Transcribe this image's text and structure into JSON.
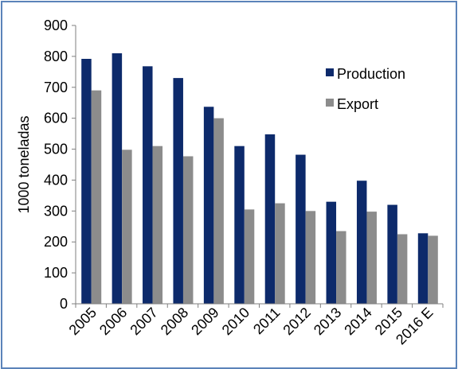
{
  "chart_data": {
    "type": "bar",
    "ylabel": "1000 toneladas",
    "xlabel": "",
    "ylim": [
      0,
      900
    ],
    "yticks": [
      0,
      100,
      200,
      300,
      400,
      500,
      600,
      700,
      800,
      900
    ],
    "grid": false,
    "legend_position": "top-right",
    "categories": [
      "2005",
      "2006",
      "2007",
      "2008",
      "2009",
      "2010",
      "2011",
      "2012",
      "2013",
      "2014",
      "2015",
      "2016 E"
    ],
    "series": [
      {
        "name": "Production",
        "color": "#0d2a6b",
        "values": [
          792,
          810,
          768,
          730,
          637,
          510,
          548,
          482,
          330,
          398,
          320,
          228
        ]
      },
      {
        "name": "Export",
        "color": "#8c8c8c",
        "values": [
          690,
          498,
          510,
          477,
          600,
          305,
          325,
          300,
          235,
          298,
          225,
          220
        ]
      }
    ]
  }
}
